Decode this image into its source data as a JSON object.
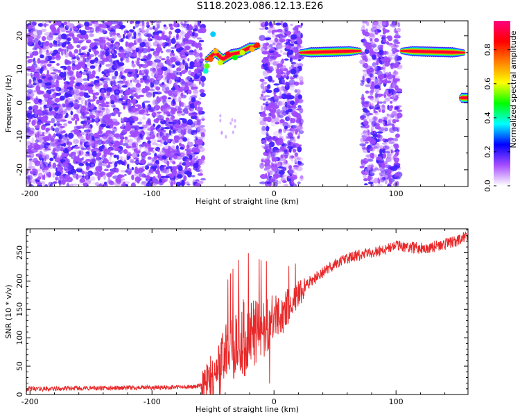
{
  "title": "S118.2023.086.12.13.E26",
  "chart_data": [
    {
      "type": "heatmap",
      "xlabel": "Height of straight line (km)",
      "ylabel": "Frequency (Hz)",
      "xlim": [
        -203,
        159
      ],
      "ylim": [
        -25,
        24.5
      ],
      "x_ticks": [
        -200,
        -100,
        0,
        100
      ],
      "y_ticks": [
        20,
        10,
        0,
        -10,
        -20
      ],
      "colorbar": {
        "label": "Normalized spectral amplitude",
        "range": [
          0,
          0.97
        ],
        "ticks": [
          0.0,
          0.2,
          0.4,
          0.6,
          0.8
        ],
        "colormap": [
          "#ffffff",
          "#a64dff",
          "#0000ff",
          "#00ffff",
          "#00ff00",
          "#ffff00",
          "#ff8000",
          "#ff0000",
          "#ff007f"
        ]
      },
      "noise_bands": [
        [
          -203,
          -58
        ],
        [
          -10,
          23
        ],
        [
          72,
          103
        ]
      ],
      "features": [
        {
          "name": "",
          "x": [
            -55,
            -48,
            -42,
            -35,
            -28,
            -20,
            -13
          ],
          "y": [
            13,
            15,
            13,
            14.5,
            15,
            16.5,
            17
          ]
        },
        {
          "name": "",
          "x": [
            22,
            70
          ],
          "y": [
            15,
            15.5
          ]
        },
        {
          "name": "",
          "x": [
            105,
            155
          ],
          "y": [
            15.5,
            15
          ]
        },
        {
          "name": "",
          "x": [
            153,
            159
          ],
          "y": [
            1.5,
            1.5
          ]
        }
      ]
    },
    {
      "type": "line",
      "xlabel": "Height of straight line (km)",
      "ylabel": "SNR (10 * v/v)",
      "xlim": [
        -203,
        159
      ],
      "ylim": [
        0,
        292
      ],
      "x_ticks": [
        -200,
        -100,
        0,
        100
      ],
      "y_ticks": [
        0,
        50,
        100,
        150,
        200,
        250
      ],
      "color": "#e8292a",
      "series": [
        {
          "name": "",
          "x": [
            -203,
            -180,
            -160,
            -140,
            -120,
            -100,
            -80,
            -70,
            -60,
            -55,
            -50,
            -45,
            -40,
            -35,
            -30,
            -25,
            -20,
            -15,
            -10,
            -5,
            0,
            5,
            10,
            15,
            20,
            30,
            40,
            50,
            60,
            70,
            80,
            90,
            100,
            110,
            120,
            130,
            140,
            150,
            159
          ],
          "values": [
            10,
            10,
            11,
            11,
            12,
            12,
            13,
            13,
            15,
            20,
            30,
            45,
            70,
            85,
            90,
            100,
            105,
            110,
            115,
            125,
            130,
            140,
            150,
            160,
            180,
            200,
            215,
            230,
            240,
            245,
            250,
            255,
            262,
            260,
            258,
            260,
            265,
            270,
            280
          ]
        }
      ]
    }
  ]
}
